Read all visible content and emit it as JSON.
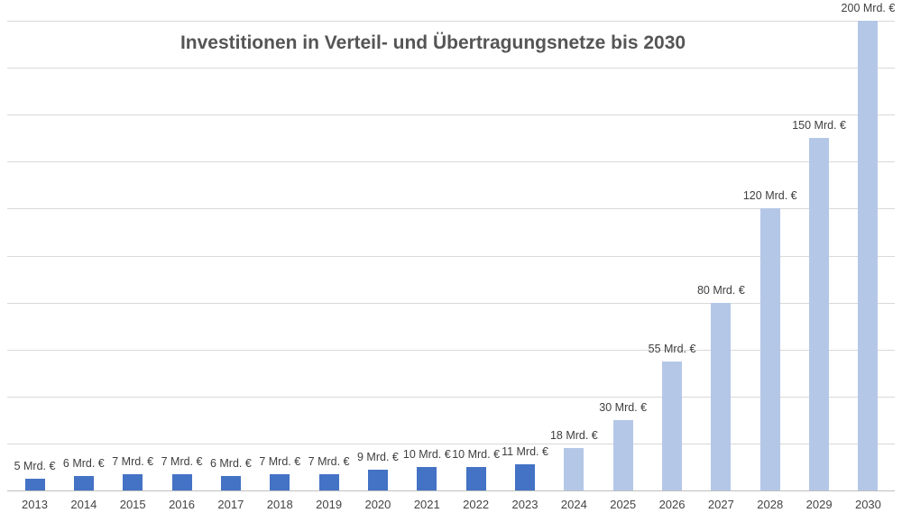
{
  "chart_data": {
    "type": "bar",
    "title": "Investitionen in Verteil- und Übertragungsnetze bis 2030",
    "categories": [
      "2013",
      "2014",
      "2015",
      "2016",
      "2017",
      "2018",
      "2019",
      "2020",
      "2021",
      "2022",
      "2023",
      "2024",
      "2025",
      "2026",
      "2027",
      "2028",
      "2029",
      "2030"
    ],
    "values": [
      5,
      6,
      7,
      7,
      6,
      7,
      7,
      9,
      10,
      10,
      11,
      18,
      30,
      55,
      80,
      120,
      150,
      200
    ],
    "value_labels": [
      "5 Mrd. €",
      "6 Mrd. €",
      "7 Mrd. €",
      "7 Mrd. €",
      "6 Mrd. €",
      "7 Mrd. €",
      "7 Mrd. €",
      "9 Mrd. €",
      "10 Mrd. €",
      "10 Mrd. €",
      "11 Mrd. €",
      "18 Mrd. €",
      "30 Mrd. €",
      "55 Mrd. €",
      "80 Mrd. €",
      "120 Mrd. €",
      "150 Mrd. €",
      "200 Mrd. €"
    ],
    "unit": "Mrd. €",
    "xlabel": "",
    "ylabel": "",
    "ylim": [
      0,
      200
    ],
    "gridline_step": 20,
    "grid": true,
    "legend": "none",
    "forecast_start_index": 11,
    "colors": {
      "historical": "#4472c4",
      "forecast": "#b4c7e7",
      "gridline": "#d9d9d9",
      "axis_line": "#bfbfbf",
      "title_text": "#555555",
      "label_text": "#3f3f3f"
    }
  }
}
